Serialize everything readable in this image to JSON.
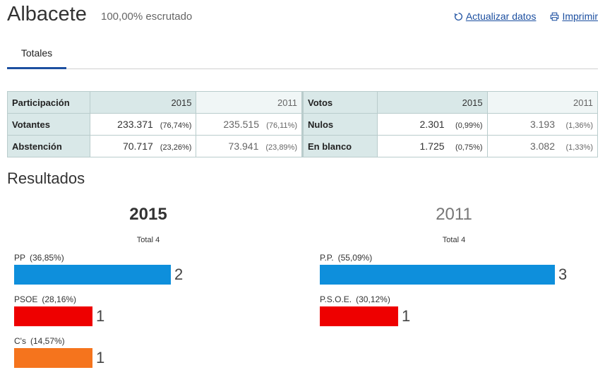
{
  "header": {
    "title": "Albacete",
    "scrutiny": "100,00% escrutado",
    "refresh_label": "Actualizar datos",
    "print_label": "Imprimir"
  },
  "tabs": [
    {
      "label": "Totales"
    }
  ],
  "participation": {
    "header": "Participación",
    "years": [
      "2015",
      "2011"
    ],
    "rows": [
      {
        "label": "Votantes",
        "v2015": "233.371",
        "p2015": "(76,74%)",
        "v2011": "235.515",
        "p2011": "(76,11%)"
      },
      {
        "label": "Abstención",
        "v2015": "70.717",
        "p2015": "(23,26%)",
        "v2011": "73.941",
        "p2011": "(23,89%)"
      }
    ]
  },
  "votes": {
    "header": "Votos",
    "years": [
      "2015",
      "2011"
    ],
    "rows": [
      {
        "label": "Nulos",
        "v2015": "2.301",
        "p2015": "(0,99%)",
        "v2011": "3.193",
        "p2011": "(1,36%)"
      },
      {
        "label": "En blanco",
        "v2015": "1.725",
        "p2015": "(0,75%)",
        "v2011": "3.082",
        "p2011": "(1,33%)"
      }
    ]
  },
  "results": {
    "title": "Resultados",
    "y2015": {
      "year": "2015",
      "total": "Total 4",
      "parties": [
        {
          "name": "PP",
          "pct": "(36,85%)",
          "seats": "2",
          "color": "#0e8fdc"
        },
        {
          "name": "PSOE",
          "pct": "(28,16%)",
          "seats": "1",
          "color": "#ee0000"
        },
        {
          "name": "C's",
          "pct": "(14,57%)",
          "seats": "1",
          "color": "#f5741d"
        }
      ]
    },
    "y2011": {
      "year": "2011",
      "total": "Total 4",
      "parties": [
        {
          "name": "P.P.",
          "pct": "(55,09%)",
          "seats": "3",
          "color": "#0e8fdc"
        },
        {
          "name": "P.S.O.E.",
          "pct": "(30,12%)",
          "seats": "1",
          "color": "#ee0000"
        }
      ]
    }
  }
}
